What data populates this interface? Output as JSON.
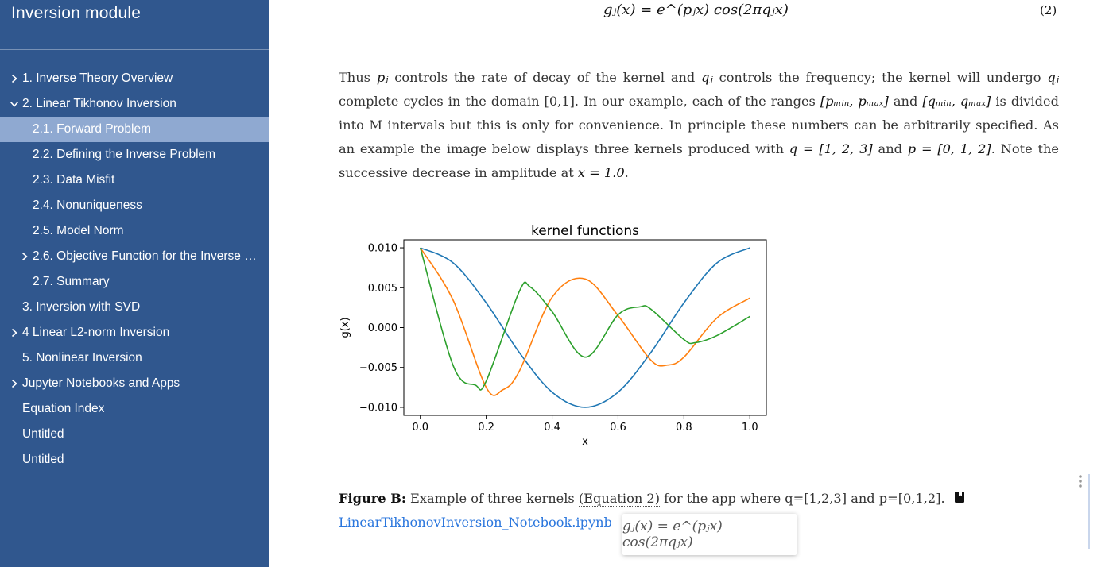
{
  "sidebar": {
    "title": "Inversion module",
    "items": [
      {
        "label": "1. Inverse Theory Overview",
        "level": 0,
        "chevron": "right",
        "active": false
      },
      {
        "label": "2. Linear Tikhonov Inversion",
        "level": 0,
        "chevron": "down",
        "active": false
      },
      {
        "label": "2.1. Forward Problem",
        "level": 1,
        "chevron": "",
        "active": true
      },
      {
        "label": "2.2. Defining the Inverse Problem",
        "level": 1,
        "chevron": "",
        "active": false
      },
      {
        "label": "2.3. Data Misfit",
        "level": 1,
        "chevron": "",
        "active": false
      },
      {
        "label": "2.4. Nonuniqueness",
        "level": 1,
        "chevron": "",
        "active": false
      },
      {
        "label": "2.5. Model Norm",
        "level": 1,
        "chevron": "",
        "active": false
      },
      {
        "label": "2.6. Objective Function for the Inverse …",
        "level": 1,
        "chevron": "right",
        "active": false
      },
      {
        "label": "2.7. Summary",
        "level": 1,
        "chevron": "",
        "active": false
      },
      {
        "label": "3. Inversion with SVD",
        "level": 0,
        "chevron": "",
        "active": false
      },
      {
        "label": "4 Linear L2-norm Inversion",
        "level": 0,
        "chevron": "right",
        "active": false
      },
      {
        "label": "5. Nonlinear Inversion",
        "level": 0,
        "chevron": "",
        "active": false
      },
      {
        "label": "Jupyter Notebooks and Apps",
        "level": 0,
        "chevron": "right",
        "active": false
      },
      {
        "label": "Equation Index",
        "level": 0,
        "chevron": "",
        "active": false
      },
      {
        "label": "Untitled",
        "level": 0,
        "chevron": "",
        "active": false
      },
      {
        "label": "Untitled",
        "level": 0,
        "chevron": "",
        "active": false
      }
    ]
  },
  "content": {
    "equation": "gⱼ(x) = e^(pⱼx) cos(2πqⱼx)",
    "equation_number": "(2)",
    "paragraph": {
      "t1": "Thus ",
      "m_pj": "pⱼ",
      "t2": " controls the rate of decay of the kernel and ",
      "m_qj": "qⱼ",
      "t3": " controls the frequency; the kernel will undergo ",
      "m_qj2": "qⱼ",
      "t4": " complete cycles in the domain [0,1]. In our example, each of the ranges ",
      "m_prange": "[pₘᵢₙ, pₘₐₓ]",
      "t5": " and ",
      "m_qrange": "[qₘᵢₙ, qₘₐₓ]",
      "t6": " is divided into M intervals but this is only for convenience. In principle these numbers can be arbitrarily specified. As an example the image below displays three kernels produced with ",
      "m_q": "q = [1, 2, 3]",
      "t7": " and ",
      "m_p": "p = [0, 1, 2]",
      "t8": ". Note the successive decrease in amplitude at ",
      "m_x": "x = 1.0",
      "t9": "."
    },
    "caption": {
      "label": "Figure B:",
      "t1": " Example of three kernels ",
      "eqref": "(Equation 2)",
      "t2": " for the app where q=[1,2,3] and p=[0,1,2].",
      "link": "LinearTikhonovInversion_Notebook.ipynb",
      "icon": "book-icon"
    },
    "tooltip": "gⱼ(x) = e^(pⱼx) cos(2πqⱼx)"
  },
  "chart_data": {
    "type": "line",
    "title": "kernel functions",
    "xlabel": "x",
    "ylabel": "g(x)",
    "xlim": [
      -0.05,
      1.05
    ],
    "ylim": [
      -0.011,
      0.011
    ],
    "xticks": [
      "0.0",
      "0.2",
      "0.4",
      "0.6",
      "0.8",
      "1.0"
    ],
    "xtick_values": [
      0.0,
      0.2,
      0.4,
      0.6,
      0.8,
      1.0
    ],
    "yticks": [
      "−0.010",
      "−0.005",
      "0.000",
      "0.005",
      "0.010"
    ],
    "ytick_values": [
      -0.01,
      -0.005,
      0.0,
      0.005,
      0.01
    ],
    "grid": false,
    "legend": "none",
    "series": [
      {
        "color": "#1f77b4",
        "q": 1,
        "p": 0,
        "x": [
          0.0,
          0.1,
          0.2,
          0.3,
          0.4,
          0.5,
          0.6,
          0.7,
          0.8,
          0.9,
          1.0
        ],
        "y": [
          0.01,
          0.0081,
          0.0031,
          -0.0031,
          -0.0081,
          -0.01,
          -0.0081,
          -0.0031,
          0.0031,
          0.0081,
          0.01
        ]
      },
      {
        "color": "#ff7f0e",
        "q": 2,
        "p": 1,
        "x": [
          0.0,
          0.1,
          0.2,
          0.25,
          0.3,
          0.4,
          0.5,
          0.6,
          0.7,
          0.75,
          0.8,
          0.9,
          1.0
        ],
        "y": [
          0.01,
          0.0034,
          -0.0075,
          -0.0078,
          -0.0055,
          0.0038,
          0.0061,
          0.0015,
          -0.0041,
          -0.0047,
          -0.0037,
          0.0012,
          0.0037
        ]
      },
      {
        "color": "#2ca02c",
        "q": 3,
        "p": 2,
        "x": [
          0.0,
          0.1,
          0.1667,
          0.2,
          0.3,
          0.3333,
          0.4,
          0.5,
          0.6,
          0.6667,
          0.7,
          0.8,
          0.8333,
          0.9,
          1.0
        ],
        "y": [
          0.01,
          -0.0048,
          -0.0072,
          -0.0067,
          0.0045,
          0.0051,
          0.002,
          -0.0037,
          0.0016,
          0.0026,
          0.0023,
          -0.0015,
          -0.0019,
          -0.001,
          0.0014
        ]
      }
    ]
  }
}
